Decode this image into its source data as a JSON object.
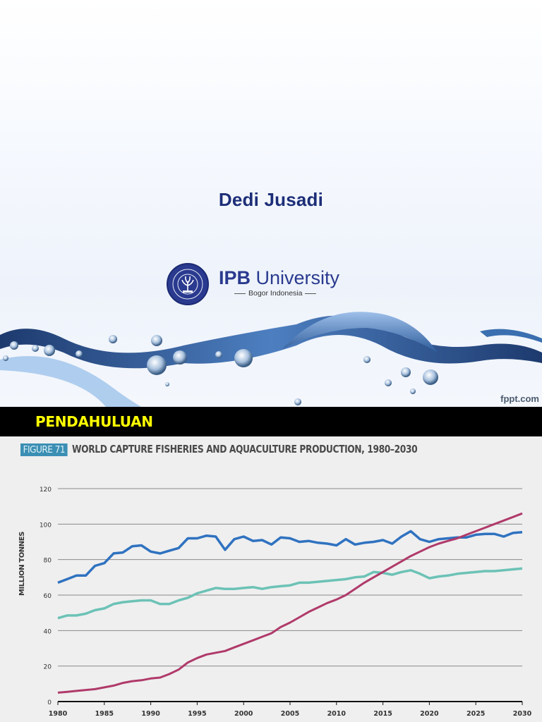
{
  "slide": {
    "author": "Dedi Jusadi",
    "logo": {
      "name_bold": "IPB",
      "name_rest": " University",
      "subtitle": "Bogor Indonesia",
      "seal_text_top": "INSTITUT PERTANIAN",
      "seal_text_bottom": "BOGOR"
    },
    "watermark": "fppt.com"
  },
  "section_bar": {
    "title": "PENDAHULUAN",
    "title_color": "#ffff00",
    "background": "#000000"
  },
  "figure": {
    "tag": "FIGURE 71",
    "title": "WORLD CAPTURE FISHERIES AND AQUACULTURE PRODUCTION, 1980–2030"
  },
  "chart_data": {
    "type": "line",
    "title": "WORLD CAPTURE FISHERIES AND AQUACULTURE PRODUCTION, 1980–2030",
    "xlabel": "",
    "ylabel": "MILLION TONNES",
    "xlim": [
      1980,
      2030
    ],
    "ylim": [
      0,
      120
    ],
    "yticks": [
      0,
      20,
      40,
      60,
      80,
      100,
      120
    ],
    "xticks": [
      1980,
      1985,
      1990,
      1995,
      2000,
      2005,
      2010,
      2015,
      2020,
      2025,
      2030
    ],
    "grid": "horizontal",
    "legend": "none",
    "x": [
      1980,
      1981,
      1982,
      1983,
      1984,
      1985,
      1986,
      1987,
      1988,
      1989,
      1990,
      1991,
      1992,
      1993,
      1994,
      1995,
      1996,
      1997,
      1998,
      1999,
      2000,
      2001,
      2002,
      2003,
      2004,
      2005,
      2006,
      2007,
      2008,
      2009,
      2010,
      2011,
      2012,
      2013,
      2014,
      2015,
      2016,
      2017,
      2018,
      2019,
      2020,
      2021,
      2022,
      2023,
      2024,
      2025,
      2026,
      2027,
      2028,
      2029,
      2030
    ],
    "series": [
      {
        "name": "Capture (blue)",
        "color": "#2f72c0",
        "values": [
          67,
          69,
          71,
          71,
          76.5,
          78,
          83.5,
          84,
          87.5,
          88,
          84.5,
          83.5,
          85,
          86.5,
          92,
          92,
          93.5,
          93,
          85.5,
          91.5,
          93,
          90.5,
          91,
          88.5,
          92.5,
          92,
          90,
          90.5,
          89.5,
          89,
          88,
          91.5,
          88.5,
          89.5,
          90,
          91,
          89,
          93,
          96,
          91.5,
          90,
          91.5,
          92,
          92.5,
          92.5,
          94,
          94.5,
          94.5,
          93,
          95,
          95.5
        ]
      },
      {
        "name": "Teal series",
        "color": "#6cc2b6",
        "values": [
          47,
          48.5,
          48.5,
          49.5,
          51.5,
          52.5,
          55,
          56,
          56.5,
          57,
          57,
          55,
          55,
          57,
          58.5,
          61,
          62.5,
          64,
          63.5,
          63.5,
          64,
          64.5,
          63.5,
          64.5,
          65,
          65.5,
          67,
          67,
          67.5,
          68,
          68.5,
          69,
          70,
          70.5,
          73,
          72.5,
          71.5,
          73,
          74,
          72,
          69.5,
          70.5,
          71,
          72,
          72.5,
          73,
          73.5,
          73.5,
          74,
          74.5,
          75
        ]
      },
      {
        "name": "Aquaculture (magenta)",
        "color": "#b03a6a",
        "values": [
          5,
          5.5,
          6,
          6.5,
          7,
          8,
          9,
          10.5,
          11.5,
          12,
          13,
          13.5,
          15.5,
          18,
          22,
          24.5,
          26.5,
          27.5,
          28.5,
          30.5,
          32.5,
          34.5,
          36.5,
          38.5,
          42,
          44.5,
          47.5,
          50.5,
          53,
          55.5,
          57.5,
          60,
          63.5,
          67,
          70,
          73,
          76,
          79,
          82,
          84.5,
          87,
          89,
          90.5,
          92,
          94,
          96,
          98,
          100,
          102,
          104,
          106
        ]
      }
    ]
  }
}
